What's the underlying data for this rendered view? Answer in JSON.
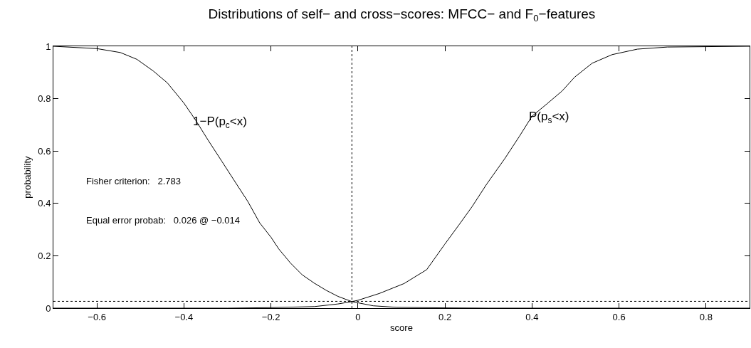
{
  "chart_data": {
    "type": "line",
    "title": "Distributions of self− and cross−scores: MFCC− and F$_{0}$−features",
    "xlabel": "score",
    "ylabel": "probability",
    "xlim": [
      -0.7,
      0.9
    ],
    "xticks": [
      -0.6,
      -0.4,
      -0.2,
      0,
      0.2,
      0.4,
      0.6,
      0.8
    ],
    "ylim": [
      0,
      1
    ],
    "yticks": [
      0,
      0.2,
      0.4,
      0.6,
      0.8,
      1
    ],
    "legend": false,
    "marker": "none",
    "line_style": "solid",
    "series": [
      {
        "name": "1−P(p$_{c}$<x)",
        "color": "#000000",
        "x": [
          -0.7,
          -0.6,
          -0.546,
          -0.508,
          -0.47,
          -0.438,
          -0.4,
          -0.372,
          -0.345,
          -0.313,
          -0.285,
          -0.253,
          -0.226,
          -0.2,
          -0.182,
          -0.155,
          -0.128,
          -0.1,
          -0.073,
          -0.046,
          -0.014,
          0.035,
          0.09,
          0.2,
          0.3,
          0.9
        ],
        "values": [
          1.0,
          0.991,
          0.976,
          0.95,
          0.905,
          0.86,
          0.783,
          0.715,
          0.643,
          0.561,
          0.489,
          0.407,
          0.326,
          0.271,
          0.226,
          0.172,
          0.127,
          0.095,
          0.068,
          0.045,
          0.025,
          0.009,
          0.003,
          0.001,
          0,
          0
        ]
      },
      {
        "name": "P(p$_{s}$<x)",
        "color": "#000000",
        "x": [
          -0.7,
          -0.3,
          -0.2,
          -0.1,
          -0.046,
          -0.014,
          0.0,
          0.049,
          0.106,
          0.158,
          0.199,
          0.233,
          0.262,
          0.296,
          0.337,
          0.371,
          0.4,
          0.435,
          0.469,
          0.498,
          0.538,
          0.584,
          0.642,
          0.711,
          0.9
        ],
        "values": [
          0,
          0,
          0.002,
          0.006,
          0.016,
          0.025,
          0.03,
          0.056,
          0.094,
          0.147,
          0.243,
          0.32,
          0.387,
          0.474,
          0.57,
          0.656,
          0.733,
          0.781,
          0.829,
          0.882,
          0.935,
          0.968,
          0.989,
          0.997,
          1.0
        ]
      }
    ],
    "ref_lines": [
      {
        "axis": "x",
        "value": -0.014,
        "color": "#000000",
        "line_style": "dotted"
      },
      {
        "axis": "y",
        "value": 0.026,
        "color": "#000000",
        "line_style": "dotted"
      }
    ],
    "annotations": [
      "Fisher criterion:   2.783",
      "Equal error probab:   0.026 @ −0.014"
    ]
  }
}
